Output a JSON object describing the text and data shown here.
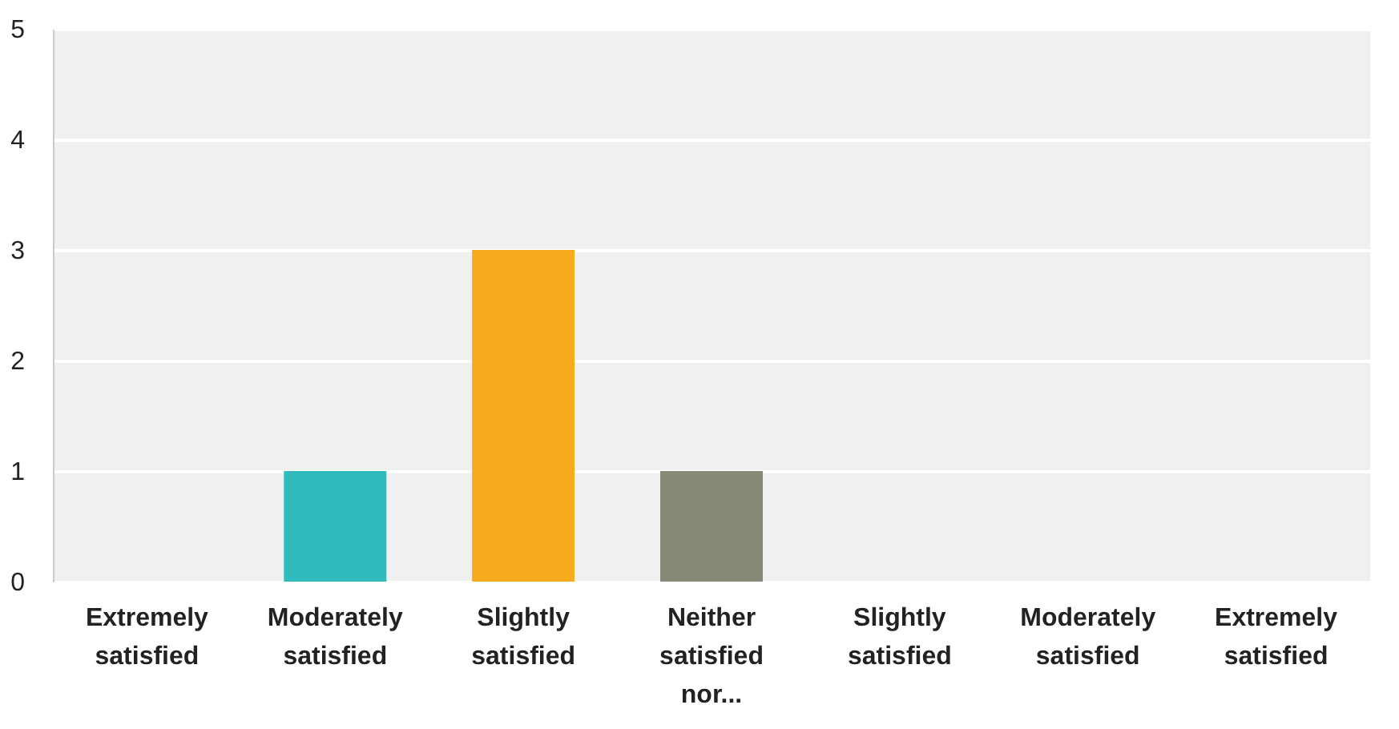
{
  "chart_data": {
    "type": "bar",
    "categories": [
      "Extremely satisfied",
      "Moderately satisfied",
      "Slightly satisfied",
      "Neither satisfied nor...",
      "Slightly satisfied",
      "Moderately satisfied",
      "Extremely satisfied"
    ],
    "values": [
      0,
      1,
      3,
      1,
      0,
      0,
      0
    ],
    "colors": [
      "#2e6fb5",
      "#30bcbc",
      "#f5ab1b",
      "#868a78",
      "#d9534f",
      "#8e5ea2",
      "#6aa84f"
    ],
    "ylim": [
      0,
      5
    ],
    "yticks": [
      0,
      1,
      2,
      3,
      4,
      5
    ],
    "grid": "y"
  }
}
